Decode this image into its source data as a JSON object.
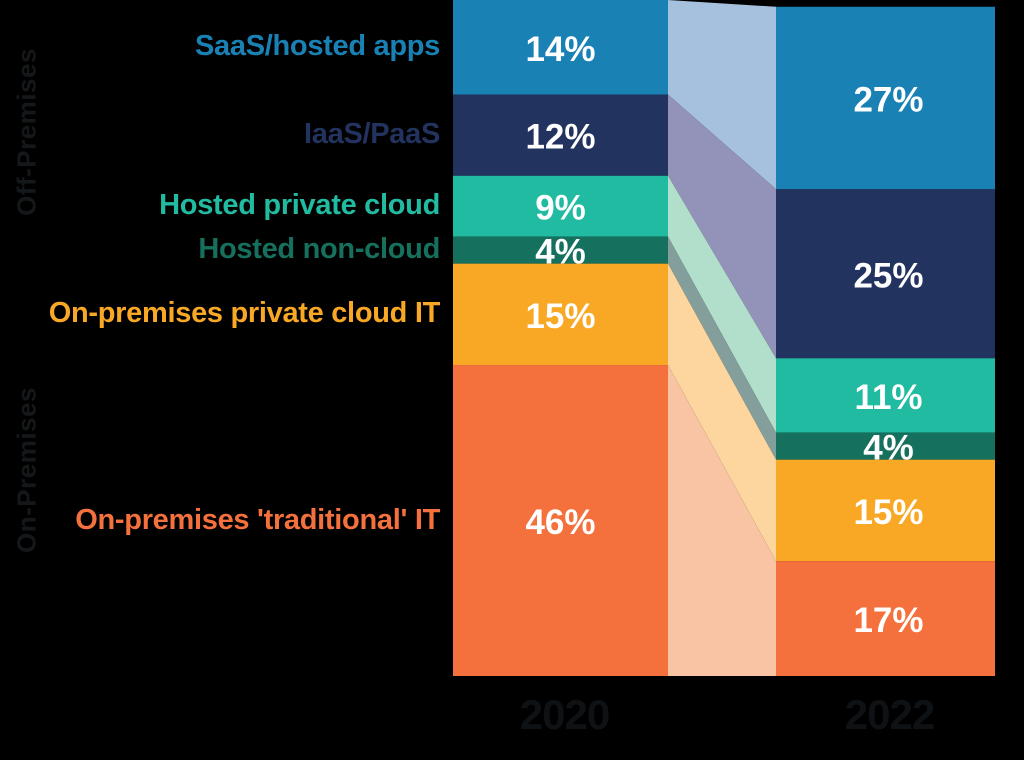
{
  "canvas": {
    "background": "#000000"
  },
  "chart_data": {
    "type": "bar",
    "subtype": "alluvial_stacked_bar_comparison",
    "title": "",
    "categories": [
      "2020",
      "2022"
    ],
    "unit": "%",
    "totals": [
      100,
      99
    ],
    "series": [
      {
        "name": "SaaS/hosted apps",
        "values": [
          14,
          27
        ],
        "bar_color": "#1a81b5",
        "flow_color": "#a6c1dd",
        "label_color": "#1a81b5",
        "group": "Off-Premises"
      },
      {
        "name": "IaaS/PaaS",
        "values": [
          12,
          25
        ],
        "bar_color": "#23335f",
        "flow_color": "#9392b8",
        "label_color": "#23335f",
        "group": "Off-Premises"
      },
      {
        "name": "Hosted private cloud",
        "values": [
          9,
          11
        ],
        "bar_color": "#21bba2",
        "flow_color": "#b2dfcc",
        "label_color": "#21bba2",
        "group": "Off-Premises"
      },
      {
        "name": "Hosted non-cloud",
        "values": [
          4,
          4
        ],
        "bar_color": "#16705e",
        "flow_color": "#849f9b",
        "label_color": "#16705e",
        "group": "Off-Premises"
      },
      {
        "name": "On-premises private cloud IT",
        "values": [
          15,
          15
        ],
        "bar_color": "#f9a826",
        "flow_color": "#fcd69e",
        "label_color": "#f9a826",
        "group": "On-Premises"
      },
      {
        "name": "On-premises 'traditional' IT",
        "values": [
          46,
          17
        ],
        "bar_color": "#f4703c",
        "flow_color": "#f8c4a4",
        "label_color": "#f4703c",
        "group": "On-Premises"
      }
    ],
    "value_labels": [
      [
        "14%",
        "12%",
        "9%",
        "4%",
        "15%",
        "46%"
      ],
      [
        "27%",
        "25%",
        "11%",
        "4%",
        "15%",
        "17%"
      ]
    ],
    "group_labels": [
      {
        "label": "Off-Premises",
        "series_start": 0,
        "series_end": 3,
        "color": "#15181b"
      },
      {
        "label": "On-Premises",
        "series_start": 4,
        "series_end": 5,
        "color": "#15181b"
      }
    ],
    "value_label_color": "#ffffff",
    "axis_label_color": "#0f1215",
    "legend_position": "left",
    "grid": false
  }
}
